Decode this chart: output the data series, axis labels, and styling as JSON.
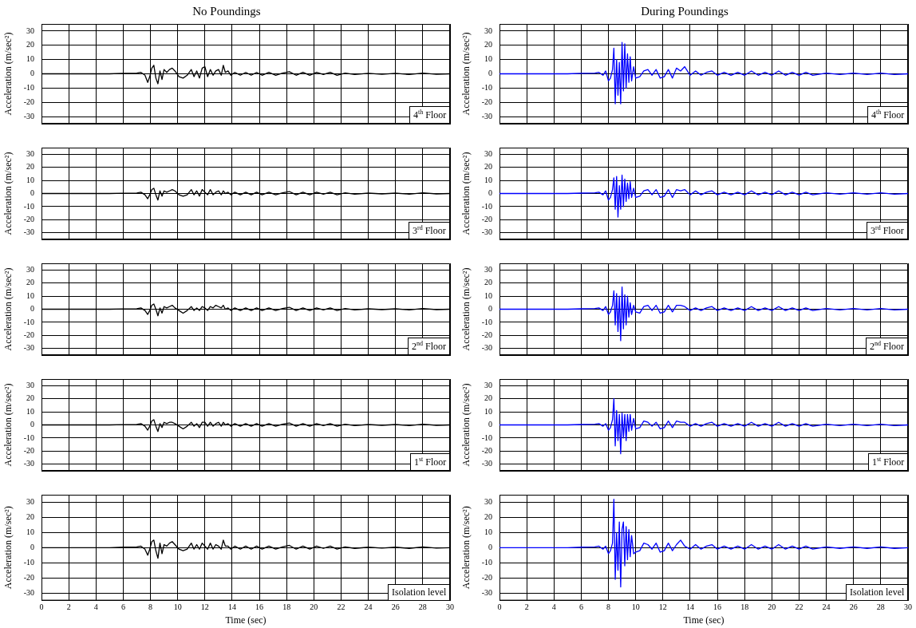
{
  "chart_data": [
    {
      "type": "line",
      "title": "No Poundings",
      "ylabel": "Acceleration (m/sec²)",
      "xlim": [
        0,
        30
      ],
      "xticks": [
        0,
        2,
        4,
        6,
        8,
        10,
        12,
        14,
        16,
        18,
        20,
        22,
        24,
        26,
        28,
        30
      ],
      "ylim": [
        -35,
        35
      ],
      "yticks": [
        -30,
        -20,
        -10,
        0,
        10,
        20,
        30
      ],
      "grid": true,
      "tick_labels": "y",
      "annotations": [
        "4$^{th}$ Floor"
      ],
      "x": [
        0,
        5,
        6,
        7,
        7.3,
        7.6,
        7.8,
        7.95,
        8.1,
        8.25,
        8.4,
        8.55,
        8.7,
        8.85,
        9.0,
        9.2,
        9.4,
        9.6,
        9.8,
        10.1,
        10.4,
        10.7,
        11.0,
        11.2,
        11.4,
        11.6,
        11.8,
        12.0,
        12.2,
        12.4,
        12.6,
        12.8,
        13.0,
        13.2,
        13.35,
        13.5,
        13.7,
        13.9,
        14.2,
        14.6,
        15.0,
        15.4,
        15.8,
        16.2,
        16.7,
        17.2,
        17.7,
        18.2,
        18.7,
        19.2,
        19.7,
        20.2,
        20.7,
        21.2,
        21.7,
        22.3,
        23,
        24,
        25,
        26,
        27,
        28,
        29,
        30
      ],
      "series": [
        {
          "color": "#000000",
          "values": [
            0,
            0,
            0.3,
            0.5,
            1,
            -1,
            -6,
            -2,
            4,
            6,
            -3,
            -7,
            2,
            -4,
            3,
            1,
            3,
            4,
            2,
            -2,
            -3,
            -1,
            3,
            -2,
            2,
            -3,
            4,
            5,
            -2,
            3,
            -1,
            2,
            3,
            -1,
            6,
            1,
            2,
            -1,
            1,
            -1,
            1,
            -1,
            1,
            -1,
            1,
            -1,
            0.5,
            1.5,
            -1,
            1,
            -1,
            1,
            -0.5,
            1,
            -1,
            0.5,
            -0.5,
            0.3,
            -0.3,
            0.3,
            -0.5,
            0.5,
            -0.3,
            0
          ]
        }
      ]
    },
    {
      "type": "line",
      "title": "During Poundings",
      "ylabel": "Acceleration (m/sec²)",
      "xlim": [
        0,
        30
      ],
      "xticks": [
        0,
        2,
        4,
        6,
        8,
        10,
        12,
        14,
        16,
        18,
        20,
        22,
        24,
        26,
        28,
        30
      ],
      "ylim": [
        -35,
        35
      ],
      "yticks": [
        -30,
        -20,
        -10,
        0,
        10,
        20,
        30
      ],
      "grid": true,
      "tick_labels": "y",
      "annotations": [
        "4$^{th}$ Floor"
      ],
      "x": [
        0,
        5,
        6,
        7,
        7.3,
        7.6,
        7.8,
        8.0,
        8.15,
        8.3,
        8.4,
        8.5,
        8.6,
        8.7,
        8.8,
        8.9,
        9.0,
        9.1,
        9.2,
        9.3,
        9.4,
        9.5,
        9.6,
        9.7,
        9.85,
        10.0,
        10.3,
        10.6,
        10.9,
        11.2,
        11.5,
        11.8,
        12.1,
        12.4,
        12.7,
        13.0,
        13.3,
        13.6,
        14.0,
        14.4,
        14.8,
        15.2,
        15.6,
        16.0,
        16.5,
        17,
        17.5,
        18,
        18.5,
        19,
        19.5,
        20,
        20.5,
        21,
        21.5,
        22,
        22.5,
        23,
        24,
        25,
        26,
        27,
        28,
        29,
        30
      ],
      "series": [
        {
          "color": "#0000ff",
          "values": [
            0,
            0,
            0.3,
            0.5,
            1,
            -1,
            2,
            -5,
            -3,
            3,
            18,
            -21,
            10,
            -15,
            8,
            -21,
            22,
            -12,
            21,
            -10,
            14,
            -6,
            12,
            -5,
            5,
            -3,
            -2,
            2,
            3,
            -1,
            3,
            -3,
            -2,
            3,
            -3,
            4,
            2,
            5,
            -1,
            2,
            -1,
            1,
            2,
            -1,
            1,
            -1,
            1,
            -1,
            2,
            -1,
            1,
            -1,
            2,
            -1,
            1,
            -1,
            1,
            -1,
            0.5,
            -0.5,
            0.5,
            -0.5,
            0.5,
            -0.5,
            0
          ]
        }
      ]
    },
    {
      "type": "line",
      "ylabel": "Acceleration (m/sec²)",
      "xlim": [
        0,
        30
      ],
      "xticks": [
        0,
        2,
        4,
        6,
        8,
        10,
        12,
        14,
        16,
        18,
        20,
        22,
        24,
        26,
        28,
        30
      ],
      "ylim": [
        -35,
        35
      ],
      "yticks": [
        -30,
        -20,
        -10,
        0,
        10,
        20,
        30
      ],
      "grid": true,
      "tick_labels": "y",
      "annotations": [
        "3$^{rd}$ Floor"
      ],
      "x": [
        0,
        5,
        6,
        7,
        7.3,
        7.6,
        7.8,
        7.95,
        8.1,
        8.25,
        8.4,
        8.55,
        8.7,
        8.85,
        9.0,
        9.2,
        9.4,
        9.6,
        9.8,
        10.1,
        10.4,
        10.7,
        11.0,
        11.2,
        11.4,
        11.6,
        11.8,
        12.0,
        12.2,
        12.4,
        12.6,
        12.8,
        13.0,
        13.2,
        13.35,
        13.5,
        13.7,
        13.9,
        14.2,
        14.6,
        15.0,
        15.4,
        15.8,
        16.2,
        16.7,
        17.2,
        17.7,
        18.2,
        18.7,
        19.2,
        19.7,
        20.2,
        20.7,
        21.2,
        21.7,
        22.3,
        23,
        24,
        25,
        26,
        27,
        28,
        29,
        30
      ],
      "series": [
        {
          "color": "#000000",
          "values": [
            0,
            0,
            0.2,
            0.4,
            1,
            -1,
            -4,
            -1,
            3,
            4,
            -1,
            -5,
            2,
            -2,
            2,
            1,
            2,
            3,
            2,
            -1,
            -2,
            -1,
            3,
            -1,
            2,
            -2,
            3,
            1,
            -1,
            3,
            -1,
            1,
            2,
            -1,
            2,
            0,
            1,
            -1,
            1,
            -1,
            1,
            -1,
            1,
            -1,
            1,
            -1,
            0.5,
            1.5,
            -1,
            1,
            -1,
            1,
            -0.5,
            1,
            -1,
            0.5,
            -0.5,
            0.3,
            -0.3,
            0.3,
            -0.5,
            0.5,
            -0.3,
            0
          ]
        }
      ]
    },
    {
      "type": "line",
      "ylabel": "Acceleration (m/sec²)",
      "xlim": [
        0,
        30
      ],
      "xticks": [
        0,
        2,
        4,
        6,
        8,
        10,
        12,
        14,
        16,
        18,
        20,
        22,
        24,
        26,
        28,
        30
      ],
      "ylim": [
        -35,
        35
      ],
      "yticks": [
        -30,
        -20,
        -10,
        0,
        10,
        20,
        30
      ],
      "grid": true,
      "tick_labels": "y",
      "annotations": [
        "3$^{rd}$ Floor"
      ],
      "x": [
        0,
        5,
        6,
        7,
        7.3,
        7.6,
        7.8,
        8.0,
        8.15,
        8.3,
        8.4,
        8.5,
        8.6,
        8.7,
        8.8,
        8.9,
        9.0,
        9.1,
        9.2,
        9.3,
        9.4,
        9.5,
        9.6,
        9.7,
        9.85,
        10.0,
        10.3,
        10.6,
        10.9,
        11.2,
        11.5,
        11.8,
        12.1,
        12.4,
        12.7,
        13.0,
        13.3,
        13.6,
        14.0,
        14.4,
        14.8,
        15.2,
        15.6,
        16.0,
        16.5,
        17,
        17.5,
        18,
        18.5,
        19,
        19.5,
        20,
        20.5,
        21,
        21.5,
        22,
        22.5,
        23,
        24,
        25,
        26,
        27,
        28,
        29,
        30
      ],
      "series": [
        {
          "color": "#0000ff",
          "values": [
            0,
            0,
            0.3,
            0.5,
            1,
            -1,
            2,
            -5,
            -3,
            3,
            12,
            -12,
            13,
            -18,
            6,
            -12,
            14,
            -10,
            11,
            -6,
            8,
            -4,
            9,
            -3,
            4,
            -3,
            -2,
            2,
            3,
            -1,
            3,
            -3,
            -2,
            3,
            -3,
            3,
            2,
            3,
            -1,
            2,
            -1,
            1,
            2,
            -1,
            1,
            -1,
            1,
            -1,
            2,
            -1,
            1,
            -1,
            2,
            -1,
            1,
            -1,
            1,
            -1,
            0.5,
            -0.5,
            0.5,
            -0.5,
            0.5,
            -0.5,
            0
          ]
        }
      ]
    },
    {
      "type": "line",
      "ylabel": "Acceleration (m/sec²)",
      "xlim": [
        0,
        30
      ],
      "xticks": [
        0,
        2,
        4,
        6,
        8,
        10,
        12,
        14,
        16,
        18,
        20,
        22,
        24,
        26,
        28,
        30
      ],
      "ylim": [
        -35,
        35
      ],
      "yticks": [
        -30,
        -20,
        -10,
        0,
        10,
        20,
        30
      ],
      "grid": true,
      "tick_labels": "y",
      "annotations": [
        "2$^{nd}$ Floor"
      ],
      "x": [
        0,
        5,
        6,
        7,
        7.3,
        7.6,
        7.8,
        7.95,
        8.1,
        8.25,
        8.4,
        8.55,
        8.7,
        8.85,
        9.0,
        9.2,
        9.4,
        9.6,
        9.8,
        10.1,
        10.4,
        10.7,
        11.0,
        11.2,
        11.4,
        11.6,
        11.8,
        12.0,
        12.2,
        12.4,
        12.6,
        12.8,
        13.0,
        13.2,
        13.35,
        13.5,
        13.7,
        13.9,
        14.2,
        14.6,
        15.0,
        15.4,
        15.8,
        16.2,
        16.7,
        17.2,
        17.7,
        18.2,
        18.7,
        19.2,
        19.7,
        20.2,
        20.7,
        21.2,
        21.7,
        22.3,
        23,
        24,
        25,
        26,
        27,
        28,
        29,
        30
      ],
      "series": [
        {
          "color": "#000000",
          "values": [
            0,
            0,
            0.2,
            0.4,
            1,
            -1,
            -4,
            -1,
            3,
            4,
            0,
            -5,
            1,
            -3,
            2,
            1,
            2,
            3,
            1,
            -1,
            -3,
            -1,
            2,
            -1,
            1,
            -1,
            2,
            1,
            -1,
            2,
            1,
            3,
            2,
            1,
            3,
            0,
            1,
            -1,
            1,
            -1,
            1,
            -1,
            1,
            -1,
            1,
            -1,
            0.5,
            1.5,
            -1,
            1,
            -1,
            1,
            -0.5,
            1,
            -1,
            0.5,
            -0.5,
            0.3,
            -0.3,
            0.3,
            -0.5,
            0.5,
            -0.3,
            0
          ]
        }
      ]
    },
    {
      "type": "line",
      "ylabel": "Acceleration (m/sec²)",
      "xlim": [
        0,
        30
      ],
      "xticks": [
        0,
        2,
        4,
        6,
        8,
        10,
        12,
        14,
        16,
        18,
        20,
        22,
        24,
        26,
        28,
        30
      ],
      "ylim": [
        -35,
        35
      ],
      "yticks": [
        -30,
        -20,
        -10,
        0,
        10,
        20,
        30
      ],
      "grid": true,
      "tick_labels": "y",
      "annotations": [
        "2$^{nd}$ Floor"
      ],
      "x": [
        0,
        5,
        6,
        7,
        7.3,
        7.6,
        7.8,
        8.0,
        8.15,
        8.3,
        8.4,
        8.5,
        8.6,
        8.7,
        8.8,
        8.9,
        9.0,
        9.1,
        9.2,
        9.3,
        9.4,
        9.5,
        9.6,
        9.7,
        9.85,
        10.0,
        10.3,
        10.6,
        10.9,
        11.2,
        11.5,
        11.8,
        12.1,
        12.4,
        12.7,
        13.0,
        13.3,
        13.6,
        14.0,
        14.4,
        14.8,
        15.2,
        15.6,
        16.0,
        16.5,
        17,
        17.5,
        18,
        18.5,
        19,
        19.5,
        20,
        20.5,
        21,
        21.5,
        22,
        22.5,
        23,
        24,
        25,
        26,
        27,
        28,
        29,
        30
      ],
      "series": [
        {
          "color": "#0000ff",
          "values": [
            0,
            0,
            0.3,
            0.5,
            1,
            -1,
            2,
            -4,
            -2,
            3,
            14,
            -12,
            12,
            -17,
            10,
            -24,
            17,
            -15,
            11,
            -12,
            10,
            -6,
            5,
            -4,
            3,
            -2,
            -3,
            2,
            3,
            -1,
            3,
            -3,
            -2,
            3,
            -2,
            3,
            3,
            2,
            -1,
            1,
            -1,
            1,
            2,
            -1,
            1,
            -1,
            1,
            -1,
            2,
            -1,
            1,
            -1,
            2,
            -1,
            1,
            -1,
            1,
            -1,
            0.5,
            -0.5,
            0.5,
            -0.5,
            0.5,
            -0.5,
            0
          ]
        }
      ]
    },
    {
      "type": "line",
      "ylabel": "Acceleration (m/sec²)",
      "xlim": [
        0,
        30
      ],
      "xticks": [
        0,
        2,
        4,
        6,
        8,
        10,
        12,
        14,
        16,
        18,
        20,
        22,
        24,
        26,
        28,
        30
      ],
      "ylim": [
        -35,
        35
      ],
      "yticks": [
        -30,
        -20,
        -10,
        0,
        10,
        20,
        30
      ],
      "grid": true,
      "tick_labels": "y",
      "annotations": [
        "1$^{st}$ Floor"
      ],
      "x": [
        0,
        5,
        6,
        7,
        7.3,
        7.6,
        7.8,
        7.95,
        8.1,
        8.25,
        8.4,
        8.55,
        8.7,
        8.85,
        9.0,
        9.2,
        9.4,
        9.6,
        9.8,
        10.1,
        10.4,
        10.7,
        11.0,
        11.2,
        11.4,
        11.6,
        11.8,
        12.0,
        12.2,
        12.4,
        12.6,
        12.8,
        13.0,
        13.2,
        13.35,
        13.5,
        13.7,
        13.9,
        14.2,
        14.6,
        15.0,
        15.4,
        15.8,
        16.2,
        16.7,
        17.2,
        17.7,
        18.2,
        18.7,
        19.2,
        19.7,
        20.2,
        20.7,
        21.2,
        21.7,
        22.3,
        23,
        24,
        25,
        26,
        27,
        28,
        29,
        30
      ],
      "series": [
        {
          "color": "#000000",
          "values": [
            0,
            0,
            0.2,
            0.4,
            1,
            -1,
            -4,
            -1,
            3,
            4,
            -1,
            -5,
            1,
            -2,
            2,
            1,
            2,
            2,
            1,
            -1,
            -3,
            -1,
            2,
            -1,
            1,
            -2,
            2,
            2,
            -1,
            2,
            -1,
            1,
            2,
            -1,
            2,
            0,
            1,
            -1,
            1,
            -1,
            1,
            -1,
            1,
            -1,
            1,
            -1,
            0.5,
            1.5,
            -1,
            1,
            -1,
            1,
            -0.5,
            1,
            -1,
            0.5,
            -0.5,
            0.3,
            -0.3,
            0.3,
            -0.5,
            0.5,
            -0.3,
            0
          ]
        }
      ]
    },
    {
      "type": "line",
      "ylabel": "Acceleration (m/sec²)",
      "xlim": [
        0,
        30
      ],
      "xticks": [
        0,
        2,
        4,
        6,
        8,
        10,
        12,
        14,
        16,
        18,
        20,
        22,
        24,
        26,
        28,
        30
      ],
      "ylim": [
        -35,
        35
      ],
      "yticks": [
        -30,
        -20,
        -10,
        0,
        10,
        20,
        30
      ],
      "grid": true,
      "tick_labels": "y",
      "annotations": [
        "1$^{st}$ Floor"
      ],
      "x": [
        0,
        5,
        6,
        7,
        7.3,
        7.6,
        7.8,
        8.0,
        8.15,
        8.3,
        8.4,
        8.5,
        8.6,
        8.7,
        8.8,
        8.9,
        9.0,
        9.1,
        9.2,
        9.3,
        9.4,
        9.5,
        9.6,
        9.7,
        9.85,
        10.0,
        10.3,
        10.6,
        10.9,
        11.2,
        11.5,
        11.8,
        12.1,
        12.4,
        12.7,
        13.0,
        13.3,
        13.6,
        14.0,
        14.4,
        14.8,
        15.2,
        15.6,
        16.0,
        16.5,
        17,
        17.5,
        18,
        18.5,
        19,
        19.5,
        20,
        20.5,
        21,
        21.5,
        22,
        22.5,
        23,
        24,
        25,
        26,
        27,
        28,
        29,
        30
      ],
      "series": [
        {
          "color": "#0000ff",
          "values": [
            0,
            0,
            0.3,
            0.5,
            1,
            -1,
            1,
            -4,
            -2,
            4,
            20,
            -16,
            11,
            -12,
            8,
            -22,
            9,
            -10,
            8,
            -12,
            8,
            -5,
            8,
            -4,
            5,
            -3,
            -2,
            3,
            2,
            -1,
            2,
            -3,
            -2,
            3,
            -2,
            3,
            2,
            2,
            -1,
            1,
            -1,
            1,
            2,
            -1,
            1,
            -1,
            1,
            -1,
            2,
            -1,
            1,
            -1,
            2,
            -1,
            1,
            -1,
            1,
            -1,
            0.5,
            -0.5,
            0.5,
            -0.5,
            0.5,
            -0.5,
            0
          ]
        }
      ]
    },
    {
      "type": "line",
      "ylabel": "Acceleration (m/sec²)",
      "xlabel": "Time (sec)",
      "xlim": [
        0,
        30
      ],
      "xticks": [
        0,
        2,
        4,
        6,
        8,
        10,
        12,
        14,
        16,
        18,
        20,
        22,
        24,
        26,
        28,
        30
      ],
      "ylim": [
        -35,
        35
      ],
      "yticks": [
        -30,
        -20,
        -10,
        0,
        10,
        20,
        30
      ],
      "grid": true,
      "annotations": [
        "Isolation level"
      ],
      "x": [
        0,
        5,
        6,
        7,
        7.3,
        7.6,
        7.8,
        7.95,
        8.1,
        8.25,
        8.4,
        8.55,
        8.7,
        8.85,
        9.0,
        9.2,
        9.4,
        9.6,
        9.8,
        10.1,
        10.4,
        10.7,
        11.0,
        11.2,
        11.4,
        11.6,
        11.8,
        12.0,
        12.2,
        12.4,
        12.6,
        12.8,
        13.0,
        13.2,
        13.35,
        13.5,
        13.7,
        13.9,
        14.2,
        14.6,
        15.0,
        15.4,
        15.8,
        16.2,
        16.7,
        17.2,
        17.7,
        18.2,
        18.7,
        19.2,
        19.7,
        20.2,
        20.7,
        21.2,
        21.7,
        22.3,
        23,
        24,
        25,
        26,
        27,
        28,
        29,
        30
      ],
      "series": [
        {
          "color": "#000000",
          "values": [
            0,
            0,
            0.3,
            0.5,
            1,
            -1,
            -5,
            -1,
            4,
            5,
            -2,
            -7,
            3,
            -4,
            2,
            1,
            3,
            4,
            2,
            -1,
            -2,
            -1,
            3,
            -1,
            2,
            -1,
            3,
            1,
            -1,
            3,
            -1,
            2,
            1,
            -1,
            5,
            1,
            1,
            -1,
            1,
            -1,
            1,
            -1,
            1,
            -1,
            1,
            -1,
            0.5,
            1.5,
            -1,
            1,
            -1,
            1,
            -0.5,
            1,
            -1,
            0.5,
            -0.5,
            0.3,
            -0.3,
            0.3,
            -0.5,
            0.5,
            -0.3,
            0
          ]
        }
      ]
    },
    {
      "type": "line",
      "ylabel": "Acceleration (m/sec²)",
      "xlabel": "Time (sec)",
      "xlim": [
        0,
        30
      ],
      "xticks": [
        0,
        2,
        4,
        6,
        8,
        10,
        12,
        14,
        16,
        18,
        20,
        22,
        24,
        26,
        28,
        30
      ],
      "ylim": [
        -35,
        35
      ],
      "yticks": [
        -30,
        -20,
        -10,
        0,
        10,
        20,
        30
      ],
      "grid": true,
      "annotations": [
        "Isolation level"
      ],
      "x": [
        0,
        5,
        6,
        7,
        7.3,
        7.6,
        7.8,
        8.0,
        8.15,
        8.3,
        8.4,
        8.5,
        8.6,
        8.7,
        8.8,
        8.9,
        9.0,
        9.1,
        9.2,
        9.3,
        9.4,
        9.5,
        9.6,
        9.7,
        9.85,
        10.0,
        10.3,
        10.6,
        10.9,
        11.2,
        11.5,
        11.8,
        12.1,
        12.4,
        12.7,
        13.0,
        13.3,
        13.6,
        14.0,
        14.4,
        14.8,
        15.2,
        15.6,
        16.0,
        16.5,
        17,
        17.5,
        18,
        18.5,
        19,
        19.5,
        20,
        20.5,
        21,
        21.5,
        22,
        22.5,
        23,
        24,
        25,
        26,
        27,
        28,
        29,
        30
      ],
      "series": [
        {
          "color": "#0000ff",
          "values": [
            0,
            0,
            0.3,
            0.5,
            1,
            -1,
            1,
            -4,
            -2,
            3,
            32,
            -21,
            10,
            -15,
            17,
            -26,
            12,
            17,
            -12,
            14,
            -8,
            12,
            -6,
            8,
            -4,
            -3,
            -2,
            3,
            2,
            -1,
            3,
            -3,
            -2,
            3,
            -2,
            2,
            5,
            1,
            -1,
            2,
            -1,
            1,
            2,
            -1,
            1,
            -1,
            1,
            -1,
            2,
            -1,
            1,
            -1,
            2,
            -1,
            1,
            -1,
            1,
            -1,
            0.5,
            -0.5,
            0.5,
            -0.5,
            0.5,
            -0.5,
            0
          ]
        }
      ]
    }
  ]
}
